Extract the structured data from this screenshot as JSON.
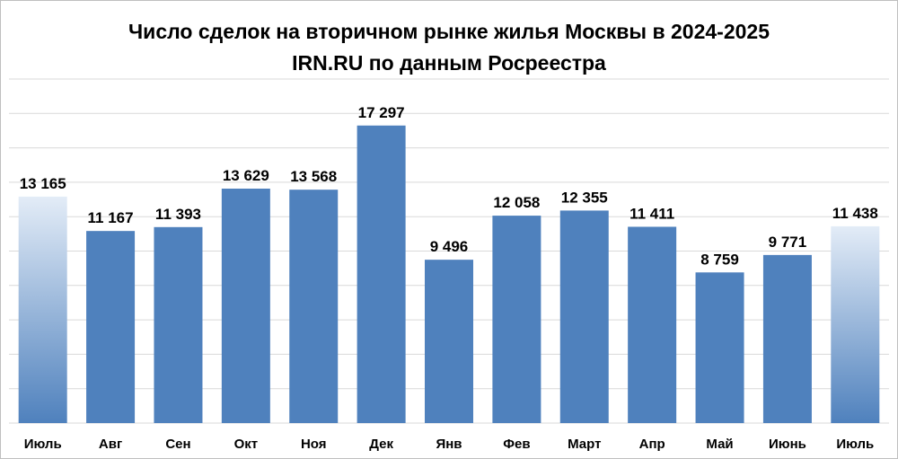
{
  "chart_data": {
    "type": "bar",
    "title": "Число сделок на вторичном рынке жилья Москвы в 2024-2025",
    "subtitle": "IRN.RU по данным Росреестра",
    "categories": [
      "Июль",
      "Авг",
      "Сен",
      "Окт",
      "Ноя",
      "Дек",
      "Янв",
      "Фев",
      "Март",
      "Апр",
      "Май",
      "Июнь",
      "Июль"
    ],
    "values": [
      13165,
      11167,
      11393,
      13629,
      13568,
      17297,
      9496,
      12058,
      12355,
      11411,
      8759,
      9771,
      11438
    ],
    "value_labels": [
      "13 165",
      "11 167",
      "11 393",
      "13 629",
      "13 568",
      "17 297",
      "9 496",
      "12 058",
      "12 355",
      "11 411",
      "8 759",
      "9 771",
      "11 438"
    ],
    "ylim": [
      0,
      20000
    ],
    "grid": true,
    "highlighted_bars": [
      0,
      12
    ],
    "colors": {
      "bar": "#4f81bd",
      "highlight_top": "#e3ecf7",
      "highlight_bottom": "#4f81bd",
      "grid": "#d9d9d9"
    }
  }
}
